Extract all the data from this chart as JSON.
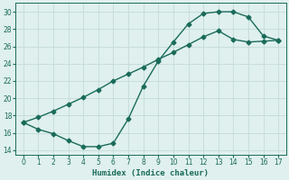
{
  "xlabel": "Humidex (Indice chaleur)",
  "line_color": "#1a6b5a",
  "background_color": "#dff0ee",
  "grid_color": "#c4dbd8",
  "xlim": [
    -0.5,
    17.5
  ],
  "ylim": [
    13.5,
    31
  ],
  "xticks": [
    0,
    1,
    2,
    3,
    4,
    5,
    6,
    7,
    8,
    9,
    10,
    11,
    12,
    13,
    14,
    15,
    16,
    17
  ],
  "yticks": [
    14,
    16,
    18,
    20,
    22,
    24,
    26,
    28,
    30
  ],
  "curve1_x": [
    0,
    1,
    2,
    3,
    4,
    5,
    6,
    7,
    8,
    9,
    10,
    11,
    12,
    13,
    14,
    15,
    16,
    17
  ],
  "curve1_y": [
    17.2,
    16.4,
    15.9,
    15.1,
    14.4,
    14.4,
    14.8,
    17.6,
    21.4,
    24.3,
    26.5,
    28.6,
    29.8,
    30.0,
    30.0,
    29.4,
    27.2,
    26.7
  ],
  "curve2_x": [
    0,
    1,
    2,
    3,
    4,
    5,
    6,
    7,
    8,
    9,
    10,
    11,
    12,
    13,
    14,
    15,
    16,
    17
  ],
  "curve2_y": [
    17.2,
    17.8,
    18.5,
    19.3,
    20.1,
    21.0,
    22.0,
    22.8,
    23.6,
    24.5,
    25.3,
    26.2,
    27.1,
    27.8,
    26.8,
    26.5,
    26.6,
    26.7
  ],
  "marker": "D",
  "marker_size": 2.5,
  "linewidth": 1.0
}
